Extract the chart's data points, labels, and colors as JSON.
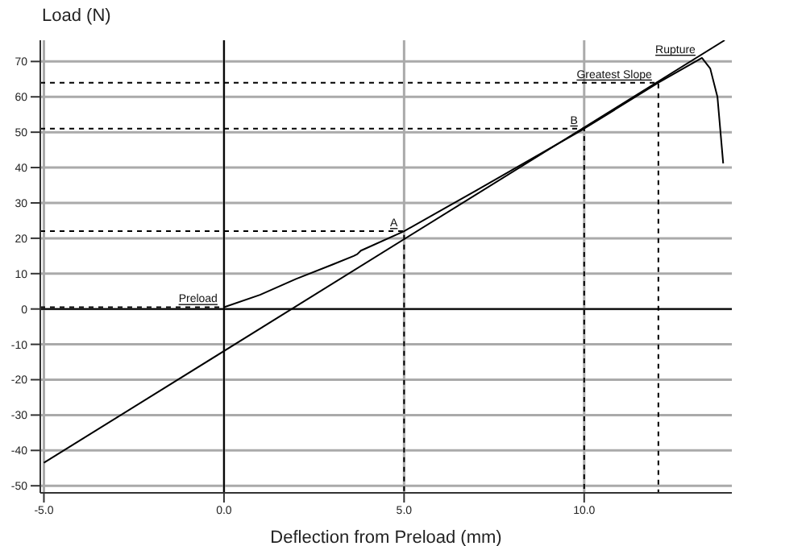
{
  "chart_data": {
    "type": "line",
    "xlabel": "Deflection from Preload (mm)",
    "ylabel": "Load (N)",
    "xlim": [
      -5.1,
      14.1
    ],
    "ylim": [
      -52,
      76
    ],
    "xticks": [
      {
        "value": -5,
        "label": "-5.0"
      },
      {
        "value": 0,
        "label": "0.0"
      },
      {
        "value": 5,
        "label": "5.0"
      },
      {
        "value": 10,
        "label": "10.0"
      }
    ],
    "yticks": [
      -50,
      -40,
      -30,
      -20,
      -10,
      0,
      10,
      20,
      30,
      40,
      50,
      60,
      70
    ],
    "grid": true,
    "series": [
      {
        "color": "#000000",
        "line_style": "solid",
        "x": [
          0,
          1,
          2,
          3,
          3.6,
          3.7,
          3.8,
          5,
          7,
          10,
          12.06,
          13.27,
          13.5,
          13.7,
          13.86
        ],
        "values": [
          0.5,
          4,
          8.5,
          12.5,
          15,
          15.5,
          16.5,
          22,
          33.5,
          51,
          64,
          71,
          68,
          60,
          41.2
        ]
      },
      {
        "color": "#000000",
        "line_style": "solid",
        "x": [
          -5,
          13.9
        ],
        "values": [
          -43.5,
          76
        ]
      },
      {
        "color": "#000000",
        "line_style": "solid",
        "x": [
          0,
          0
        ],
        "values": [
          -52,
          76
        ]
      },
      {
        "color": "#000000",
        "line_style": "solid",
        "x": [
          -5.1,
          14.1
        ],
        "values": [
          0,
          0
        ]
      },
      {
        "color": "#000000",
        "line_style": "dashed",
        "x": [
          -5.1,
          0
        ],
        "values": [
          0.5,
          0.5
        ]
      },
      {
        "color": "#000000",
        "line_style": "dashed",
        "x": [
          -5.1,
          5,
          5
        ],
        "values": [
          22,
          22,
          -52
        ]
      },
      {
        "color": "#000000",
        "line_style": "dashed",
        "x": [
          -5.1,
          10,
          10
        ],
        "values": [
          51,
          51,
          -52
        ]
      },
      {
        "color": "#000000",
        "line_style": "dashed",
        "x": [
          -5.1,
          12.06,
          12.06
        ],
        "values": [
          64,
          64,
          -52
        ]
      }
    ],
    "annotations": [
      {
        "text": "Preload",
        "x": 0,
        "y": 0.5
      },
      {
        "text": "A",
        "x": 5,
        "y": 22
      },
      {
        "text": "B",
        "x": 10,
        "y": 51
      },
      {
        "text": "Greatest Slope",
        "x": 12.06,
        "y": 64
      },
      {
        "text": "Rupture",
        "x": 13.27,
        "y": 71
      }
    ]
  }
}
